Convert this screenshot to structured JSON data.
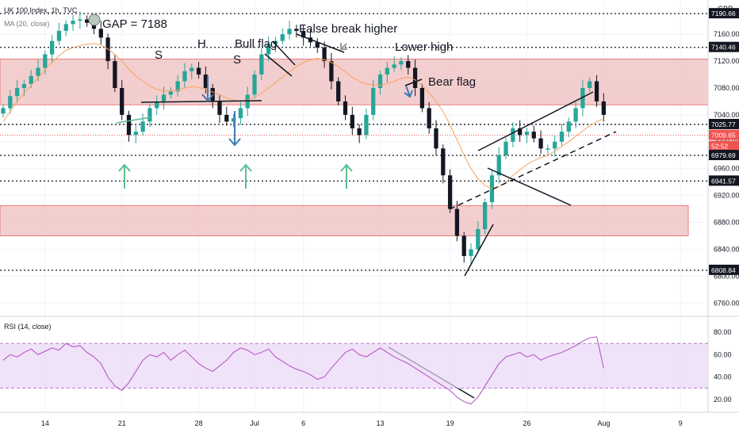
{
  "symbol": {
    "title": "UK 100 Index, 1h, TVC",
    "indicator": "MA (20, close)",
    "currency": "GBP"
  },
  "rsi": {
    "title": "RSI (14, close)"
  },
  "colors": {
    "candle_up": "#26a69a",
    "candle_down": "#131722",
    "ma": "#f7a35c",
    "rsi": "#b04fc2",
    "zone_fill": "#f2c6c6",
    "zone_stroke": "#e06666",
    "up_arrow": "#5bbf8f",
    "down_arrow": "#3d7ab5",
    "last_price": "#ef5350"
  },
  "annotations": {
    "gap": "GAP = 7188",
    "s1": "S",
    "h": "H",
    "s2": "S",
    "bull_flag": "Bull flag",
    "false_break": "False break higher",
    "lower_high": "Lower high",
    "bear_flag": "Bear flag"
  },
  "price_badges": [
    {
      "text": "7190.66",
      "value": 7190.66,
      "style": "dark"
    },
    {
      "text": "7140.46",
      "value": 7140.46,
      "style": "dark"
    },
    {
      "text": "7025.77",
      "value": 7025.77,
      "style": "dark"
    },
    {
      "text": "7009.65",
      "value": 7009.65,
      "style": "red"
    },
    {
      "text": "52:52",
      "value": 6993,
      "style": "red"
    },
    {
      "text": "6979.69",
      "value": 6979.69,
      "style": "dark"
    },
    {
      "text": "6941.57",
      "value": 6941.57,
      "style": "dark"
    },
    {
      "text": "6808.84",
      "value": 6808.84,
      "style": "dark"
    }
  ],
  "chart_data": [
    {
      "type": "candlestick",
      "title": "UK 100 Index, 1h, TVC",
      "ylim": [
        6745,
        7205
      ],
      "y_ticks": [
        7160,
        7120,
        7080,
        7040,
        7000,
        6960,
        6920,
        6880,
        6840,
        6800,
        6760
      ],
      "x_ticks": [
        "14",
        "21",
        "28",
        "Jul",
        "6",
        "13",
        "19",
        "26",
        "Aug",
        "9"
      ],
      "x_tick_index": [
        6,
        17,
        28,
        36,
        43,
        54,
        64,
        75,
        86,
        97
      ],
      "x_count": 98,
      "horizontal_levels": [
        7190.66,
        7140.46,
        7025.77,
        6979.69,
        6941.57,
        6808.84
      ],
      "zones": [
        {
          "from": 7055,
          "to": 7123
        },
        {
          "from": 6860,
          "to": 6905
        }
      ],
      "close": [
        7050,
        7068,
        7080,
        7086,
        7098,
        7110,
        7130,
        7150,
        7165,
        7175,
        7180,
        7182,
        7177,
        7168,
        7155,
        7120,
        7080,
        7040,
        7010,
        7015,
        7030,
        7050,
        7060,
        7070,
        7075,
        7090,
        7105,
        7110,
        7100,
        7080,
        7060,
        7040,
        7030,
        7035,
        7050,
        7070,
        7100,
        7130,
        7145,
        7150,
        7160,
        7168,
        7165,
        7155,
        7148,
        7140,
        7120,
        7090,
        7060,
        7040,
        7020,
        7010,
        7040,
        7080,
        7100,
        7110,
        7115,
        7120,
        7110,
        7080,
        7050,
        7020,
        6990,
        6950,
        6900,
        6860,
        6830,
        6840,
        6870,
        6910,
        6950,
        6980,
        7000,
        7020,
        7010,
        7015,
        7005,
        6990,
        6990,
        7000,
        7015,
        7030,
        7050,
        7080,
        7090,
        7060,
        7040
      ],
      "ma20": [
        7030,
        7045,
        7060,
        7072,
        7084,
        7095,
        7107,
        7118,
        7128,
        7136,
        7140,
        7143,
        7145,
        7146,
        7144,
        7138,
        7130,
        7120,
        7108,
        7098,
        7090,
        7083,
        7078,
        7076,
        7075,
        7077,
        7080,
        7082,
        7081,
        7078,
        7074,
        7070,
        7065,
        7062,
        7060,
        7062,
        7066,
        7072,
        7080,
        7088,
        7096,
        7104,
        7112,
        7118,
        7122,
        7124,
        7122,
        7118,
        7112,
        7104,
        7096,
        7090,
        7086,
        7085,
        7084,
        7086,
        7090,
        7094,
        7096,
        7092,
        7084,
        7073,
        7060,
        7045,
        7025,
        7003,
        6980,
        6960,
        6945,
        6935,
        6930,
        6933,
        6940,
        6950,
        6958,
        6966,
        6972,
        6976,
        6980,
        6986,
        6993,
        7000,
        7008,
        7016,
        7024,
        7030,
        7034
      ]
    },
    {
      "type": "line",
      "title": "RSI (14, close)",
      "ylim": [
        10,
        90
      ],
      "y_ticks": [
        80,
        60,
        40,
        20
      ],
      "band": [
        30,
        70
      ],
      "values": [
        55,
        60,
        58,
        62,
        65,
        60,
        63,
        66,
        64,
        70,
        67,
        68,
        62,
        58,
        52,
        40,
        32,
        28,
        35,
        45,
        55,
        60,
        58,
        62,
        55,
        60,
        64,
        58,
        52,
        48,
        45,
        50,
        55,
        62,
        66,
        64,
        60,
        62,
        65,
        58,
        54,
        50,
        47,
        45,
        42,
        38,
        40,
        48,
        55,
        62,
        65,
        60,
        58,
        62,
        66,
        62,
        58,
        55,
        52,
        48,
        44,
        40,
        36,
        32,
        28,
        22,
        18,
        16,
        22,
        32,
        42,
        52,
        58,
        60,
        62,
        58,
        60,
        55,
        58,
        60,
        62,
        65,
        68,
        72,
        75,
        76,
        48
      ]
    }
  ]
}
